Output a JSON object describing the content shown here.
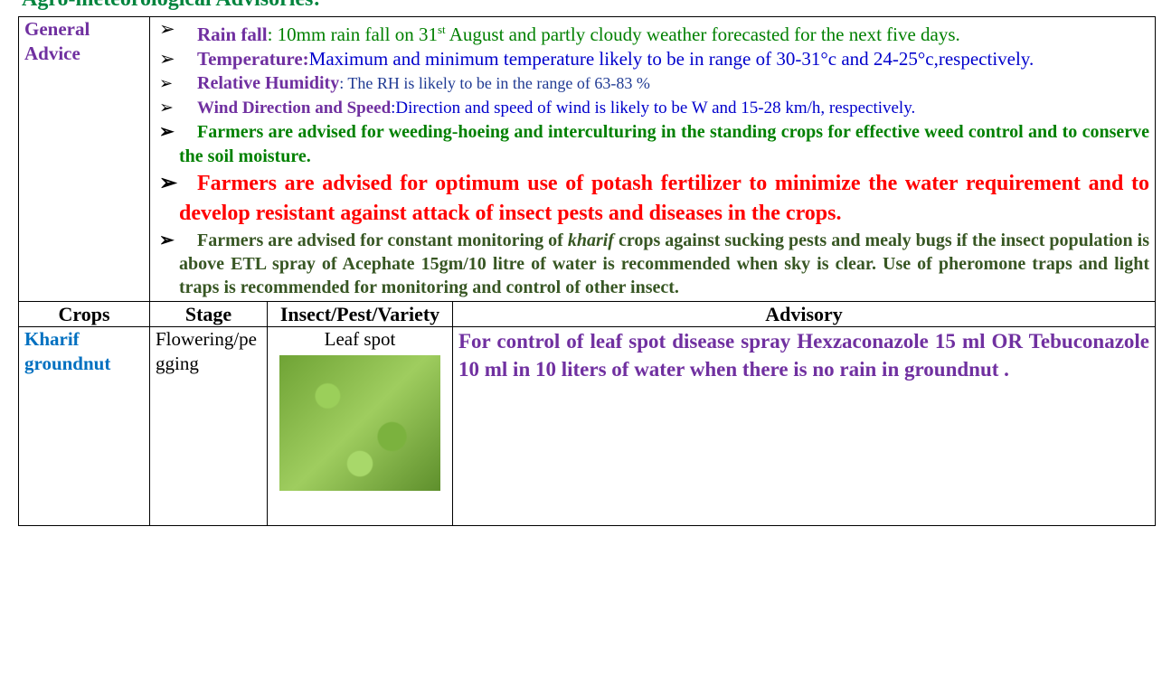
{
  "title": "Agro-meteorological Advisories:",
  "general_advice": {
    "label": "General Advice",
    "items": [
      {
        "label": "Rain fall",
        "parts": [
          ": 10mm rain fall on 31",
          "st",
          " August and partly cloudy weather forecasted for the next five days."
        ]
      },
      {
        "label": "Temperature:",
        "parts": [
          "Maximum and minimum temperature likely to be in range of 30-31°c and 24-25°c,respectively."
        ]
      },
      {
        "label": "Relative Humidity",
        "parts": [
          ": The RH is likely to be in the range of 63-83 %"
        ]
      },
      {
        "label": "Wind Direction and Speed",
        "parts": [
          ":Direction and speed of wind is likely to be W and 15-28 km/h, respectively."
        ]
      },
      {
        "parts": [
          "Farmers are advised for weeding-hoeing and interculturing in the standing crops for effective weed control and to conserve the soil moisture."
        ]
      },
      {
        "parts": [
          "Farmers are advised for optimum use of potash fertilizer to minimize the water requirement and to develop resistant against attack of insect pests and diseases in the crops."
        ]
      },
      {
        "parts": [
          "Farmers are advised for constant monitoring of ",
          "kharif",
          " crops against sucking pests and mealy bugs if the insect population is above ETL spray of Acephate 15gm/10 litre of water is recommended when sky is clear. Use of pheromone traps and light traps is recommended for monitoring and control of other insect."
        ]
      }
    ]
  },
  "table": {
    "header": [
      "Crops",
      "Stage",
      "Insect/Pest/Variety",
      "Advisory"
    ],
    "rows": [
      [
        "Kharif groundnut",
        "Flowering/pegging",
        "Leaf spot",
        "For control of leaf spot disease spray Hexzaconazole 15 ml OR Tebuconazole 10 ml in 10 liters of water when there is no rain in groundnut ."
      ]
    ]
  }
}
